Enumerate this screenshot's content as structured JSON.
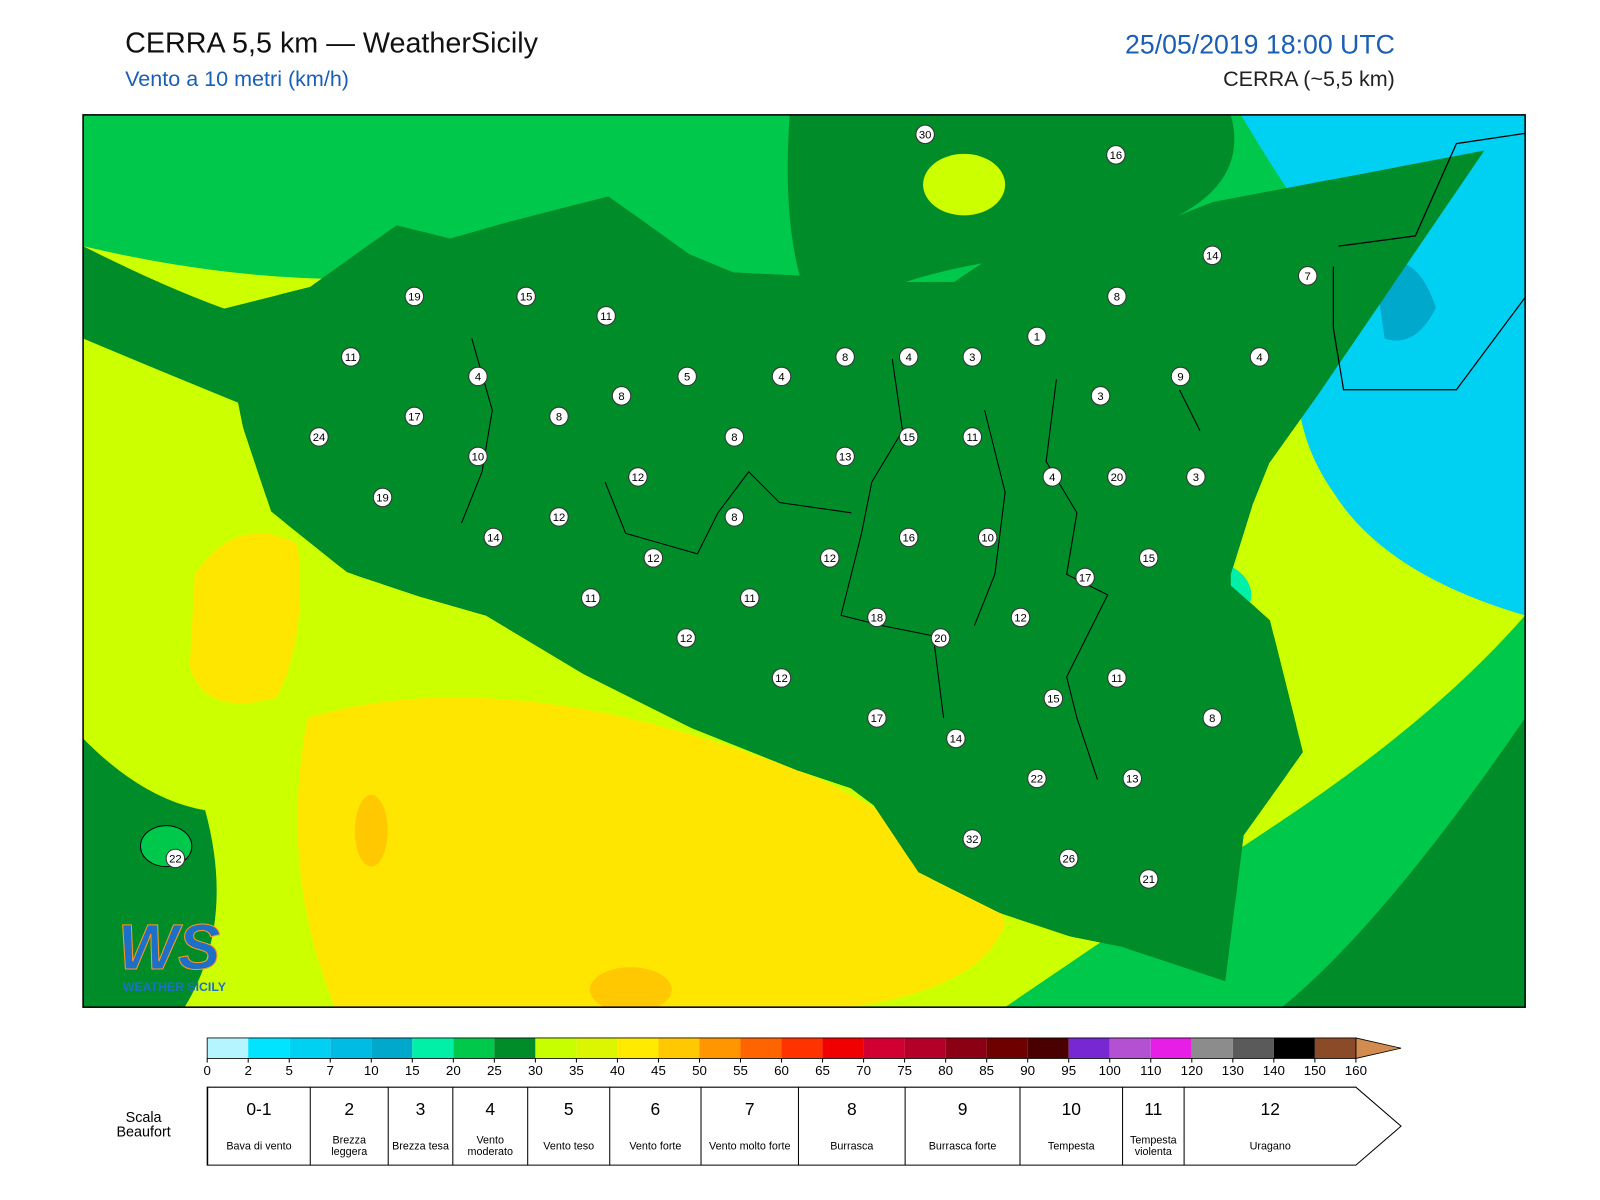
{
  "header": {
    "title": "CERRA 5,5 km — WeatherSicily",
    "subtitle": "Vento a 10 metri (km/h)",
    "datetime": "25/05/2019 18:00 UTC",
    "model": "CERRA (~5,5 km)"
  },
  "logo": {
    "mark": "WS",
    "name": "WEATHER SICILY"
  },
  "stations": [
    30,
    16,
    14,
    7,
    19,
    15,
    8,
    11,
    1,
    11,
    8,
    4,
    3,
    4,
    4,
    5,
    4,
    9,
    8,
    3,
    17,
    8,
    24,
    8,
    15,
    11,
    13,
    10,
    4,
    20,
    3,
    12,
    19,
    12,
    8,
    14,
    16,
    10,
    12,
    12,
    15,
    17,
    11,
    11,
    18,
    12,
    20,
    12,
    12,
    11,
    15,
    8,
    17,
    14,
    22,
    13,
    32,
    26,
    21,
    22
  ],
  "colorbar": {
    "ticks": [
      0,
      2,
      5,
      7,
      10,
      15,
      20,
      25,
      30,
      35,
      40,
      45,
      50,
      55,
      60,
      65,
      70,
      75,
      80,
      85,
      90,
      95,
      100,
      110,
      120,
      130,
      140,
      150,
      160
    ],
    "colors": [
      "#b4f5ff",
      "#00e4ff",
      "#00d0f2",
      "#00bce4",
      "#00a8cc",
      "#00f0a8",
      "#00c84a",
      "#008c28",
      "#c8ff00",
      "#dcf500",
      "#ffea00",
      "#ffc800",
      "#ff9600",
      "#ff6400",
      "#ff3200",
      "#f00000",
      "#d20032",
      "#b40028",
      "#8c0014",
      "#6e0000",
      "#4b0000",
      "#7828d2",
      "#b450d2",
      "#e61ee6",
      "#8c8c8c",
      "#5a5a5a",
      "#000000",
      "#8c4b28",
      "#d28c50"
    ]
  },
  "beaufort": {
    "title": "Scala Beaufort",
    "levels": [
      {
        "force": "0-1",
        "label": "Bava di vento"
      },
      {
        "force": "2",
        "label": "Brezza leggera"
      },
      {
        "force": "3",
        "label": "Brezza tesa"
      },
      {
        "force": "4",
        "label": "Vento moderato"
      },
      {
        "force": "5",
        "label": "Vento teso"
      },
      {
        "force": "6",
        "label": "Vento forte"
      },
      {
        "force": "7",
        "label": "Vento molto forte"
      },
      {
        "force": "8",
        "label": "Burrasca"
      },
      {
        "force": "9",
        "label": "Burrasca forte"
      },
      {
        "force": "10",
        "label": "Tempesta"
      },
      {
        "force": "11",
        "label": "Tempesta violenta"
      },
      {
        "force": "12",
        "label": "Uragano"
      }
    ]
  }
}
